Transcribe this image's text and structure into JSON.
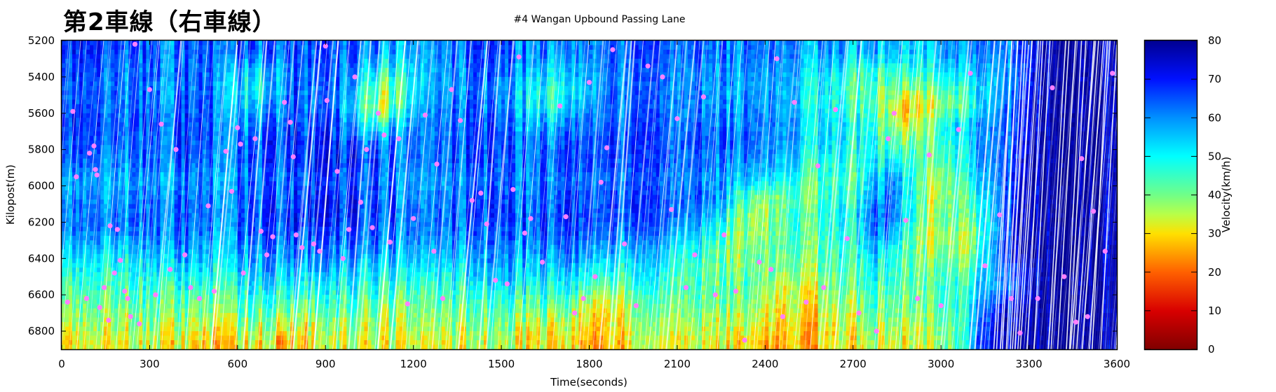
{
  "chart_data": {
    "type": "heatmap",
    "title": "第2車線（右車線）",
    "subtitle": "#4 Wangan Upbound Passing Lane",
    "xlabel": "Time(seconds)",
    "ylabel": "Kilopost(m)",
    "xlim": [
      0,
      3600
    ],
    "ylim": [
      5200,
      6900
    ],
    "y_inverted": true,
    "xticks": [
      0,
      300,
      600,
      900,
      1200,
      1500,
      1800,
      2100,
      2400,
      2700,
      3000,
      3300,
      3600
    ],
    "yticks": [
      5200,
      5400,
      5600,
      5800,
      6000,
      6200,
      6400,
      6600,
      6800
    ],
    "colorbar": {
      "label": "Velocity(km/h)",
      "range": [
        0,
        80
      ],
      "ticks": [
        0,
        10,
        20,
        30,
        40,
        50,
        60,
        70,
        80
      ],
      "colormap": "jet"
    },
    "grid_time_bins": [
      0,
      150,
      300,
      450,
      600,
      750,
      900,
      1050,
      1200,
      1350,
      1500,
      1650,
      1800,
      1950,
      2100,
      2250,
      2400,
      2550,
      2700,
      2850,
      3000,
      3150,
      3300,
      3450
    ],
    "grid_kilopost_bins": [
      5200,
      5300,
      5400,
      5500,
      5600,
      5700,
      5800,
      5900,
      6000,
      6100,
      6200,
      6300,
      6400,
      6500,
      6600,
      6700,
      6800
    ],
    "velocity_grid_kmh": [
      [
        66,
        64,
        62,
        66,
        62,
        66,
        64,
        58,
        62,
        66,
        62,
        58,
        64,
        66,
        64,
        62,
        58,
        58,
        56,
        56,
        58,
        62,
        74,
        76
      ],
      [
        64,
        62,
        62,
        64,
        52,
        64,
        62,
        48,
        60,
        64,
        60,
        52,
        62,
        64,
        62,
        60,
        56,
        52,
        46,
        50,
        52,
        58,
        74,
        76
      ],
      [
        62,
        62,
        60,
        64,
        48,
        64,
        60,
        38,
        60,
        62,
        56,
        46,
        60,
        64,
        62,
        58,
        54,
        50,
        42,
        40,
        44,
        56,
        74,
        76
      ],
      [
        64,
        62,
        62,
        66,
        52,
        64,
        62,
        34,
        62,
        64,
        58,
        48,
        62,
        64,
        62,
        60,
        56,
        50,
        44,
        30,
        38,
        58,
        74,
        76
      ],
      [
        66,
        64,
        64,
        66,
        58,
        66,
        66,
        46,
        64,
        66,
        62,
        56,
        64,
        66,
        64,
        62,
        58,
        52,
        50,
        34,
        48,
        60,
        74,
        76
      ],
      [
        64,
        62,
        62,
        66,
        62,
        68,
        68,
        62,
        64,
        66,
        64,
        62,
        66,
        66,
        66,
        64,
        58,
        52,
        50,
        42,
        44,
        60,
        74,
        76
      ],
      [
        62,
        60,
        62,
        64,
        62,
        66,
        70,
        66,
        64,
        66,
        64,
        64,
        66,
        66,
        66,
        62,
        56,
        48,
        48,
        52,
        40,
        58,
        74,
        76
      ],
      [
        56,
        56,
        58,
        60,
        60,
        62,
        66,
        64,
        60,
        62,
        62,
        62,
        62,
        64,
        64,
        60,
        50,
        44,
        44,
        60,
        34,
        54,
        74,
        76
      ],
      [
        58,
        58,
        60,
        62,
        62,
        64,
        68,
        66,
        62,
        64,
        64,
        64,
        64,
        66,
        66,
        62,
        36,
        42,
        46,
        64,
        34,
        46,
        74,
        76
      ],
      [
        60,
        60,
        62,
        64,
        62,
        66,
        70,
        66,
        64,
        66,
        64,
        66,
        66,
        66,
        66,
        58,
        32,
        44,
        48,
        66,
        38,
        42,
        74,
        76
      ],
      [
        58,
        58,
        60,
        62,
        60,
        64,
        66,
        64,
        62,
        64,
        62,
        64,
        64,
        62,
        62,
        52,
        34,
        42,
        46,
        62,
        36,
        36,
        74,
        76
      ],
      [
        52,
        52,
        54,
        58,
        56,
        60,
        62,
        60,
        58,
        60,
        58,
        60,
        60,
        56,
        56,
        46,
        38,
        40,
        44,
        54,
        40,
        36,
        74,
        76
      ],
      [
        46,
        46,
        48,
        52,
        52,
        56,
        56,
        54,
        52,
        54,
        54,
        56,
        54,
        48,
        52,
        44,
        40,
        36,
        42,
        48,
        44,
        40,
        66,
        76
      ],
      [
        42,
        42,
        44,
        46,
        46,
        50,
        50,
        48,
        46,
        48,
        48,
        50,
        48,
        40,
        48,
        44,
        42,
        30,
        38,
        46,
        44,
        44,
        62,
        76
      ],
      [
        38,
        38,
        40,
        42,
        40,
        44,
        42,
        44,
        40,
        44,
        42,
        44,
        40,
        30,
        42,
        42,
        40,
        28,
        34,
        42,
        42,
        44,
        70,
        76
      ],
      [
        34,
        34,
        36,
        38,
        34,
        38,
        34,
        38,
        36,
        40,
        38,
        38,
        34,
        28,
        38,
        38,
        36,
        26,
        30,
        38,
        38,
        40,
        74,
        76
      ],
      [
        30,
        28,
        32,
        34,
        28,
        32,
        26,
        34,
        34,
        36,
        34,
        34,
        30,
        24,
        34,
        34,
        32,
        22,
        28,
        34,
        34,
        38,
        74,
        76
      ]
    ],
    "vehicle_trajectories": "white diagonal lines (vehicles travelling toward decreasing kilopost over time)",
    "marker_series": {
      "name": "events",
      "color": "#ff80ff",
      "points": [
        [
          20,
          6640
        ],
        [
          38,
          5590
        ],
        [
          50,
          5950
        ],
        [
          85,
          6620
        ],
        [
          95,
          5820
        ],
        [
          110,
          5780
        ],
        [
          115,
          5910
        ],
        [
          120,
          5940
        ],
        [
          130,
          6670
        ],
        [
          145,
          6560
        ],
        [
          160,
          6740
        ],
        [
          165,
          6220
        ],
        [
          180,
          6480
        ],
        [
          190,
          6240
        ],
        [
          200,
          6410
        ],
        [
          215,
          6580
        ],
        [
          225,
          6620
        ],
        [
          235,
          6720
        ],
        [
          250,
          5220
        ],
        [
          265,
          6760
        ],
        [
          300,
          5470
        ],
        [
          320,
          6600
        ],
        [
          340,
          5660
        ],
        [
          370,
          6460
        ],
        [
          390,
          5800
        ],
        [
          420,
          6380
        ],
        [
          440,
          6560
        ],
        [
          470,
          6620
        ],
        [
          500,
          6110
        ],
        [
          520,
          6580
        ],
        [
          560,
          5810
        ],
        [
          580,
          6030
        ],
        [
          600,
          5680
        ],
        [
          610,
          5770
        ],
        [
          620,
          6480
        ],
        [
          660,
          5740
        ],
        [
          680,
          6250
        ],
        [
          700,
          6380
        ],
        [
          720,
          6280
        ],
        [
          760,
          5540
        ],
        [
          780,
          5650
        ],
        [
          790,
          5840
        ],
        [
          800,
          6270
        ],
        [
          820,
          6340
        ],
        [
          860,
          6320
        ],
        [
          880,
          6360
        ],
        [
          900,
          5230
        ],
        [
          905,
          5530
        ],
        [
          940,
          5920
        ],
        [
          960,
          6400
        ],
        [
          980,
          6240
        ],
        [
          1000,
          5400
        ],
        [
          1020,
          6090
        ],
        [
          1040,
          5800
        ],
        [
          1060,
          6230
        ],
        [
          1080,
          5600
        ],
        [
          1100,
          5720
        ],
        [
          1120,
          6310
        ],
        [
          1150,
          5740
        ],
        [
          1180,
          6650
        ],
        [
          1200,
          6180
        ],
        [
          1240,
          5610
        ],
        [
          1270,
          6360
        ],
        [
          1280,
          5880
        ],
        [
          1300,
          6620
        ],
        [
          1330,
          5470
        ],
        [
          1360,
          5640
        ],
        [
          1400,
          6080
        ],
        [
          1430,
          6040
        ],
        [
          1450,
          6210
        ],
        [
          1480,
          6520
        ],
        [
          1520,
          6540
        ],
        [
          1540,
          6020
        ],
        [
          1560,
          5290
        ],
        [
          1580,
          6260
        ],
        [
          1600,
          6180
        ],
        [
          1640,
          6420
        ],
        [
          1700,
          5560
        ],
        [
          1720,
          6170
        ],
        [
          1750,
          6700
        ],
        [
          1780,
          6620
        ],
        [
          1800,
          5430
        ],
        [
          1820,
          6500
        ],
        [
          1840,
          5980
        ],
        [
          1860,
          5790
        ],
        [
          1880,
          5250
        ],
        [
          1920,
          6320
        ],
        [
          1960,
          6660
        ],
        [
          2000,
          5340
        ],
        [
          2050,
          5400
        ],
        [
          2080,
          6130
        ],
        [
          2100,
          5630
        ],
        [
          2130,
          6560
        ],
        [
          2160,
          6380
        ],
        [
          2190,
          5510
        ],
        [
          2230,
          6600
        ],
        [
          2260,
          6270
        ],
        [
          2300,
          6580
        ],
        [
          2330,
          6850
        ],
        [
          2380,
          6420
        ],
        [
          2420,
          6460
        ],
        [
          2440,
          5300
        ],
        [
          2460,
          6720
        ],
        [
          2500,
          5540
        ],
        [
          2540,
          6640
        ],
        [
          2580,
          5890
        ],
        [
          2600,
          6560
        ],
        [
          2640,
          5580
        ],
        [
          2680,
          6290
        ],
        [
          2720,
          6700
        ],
        [
          2780,
          6800
        ],
        [
          2820,
          5740
        ],
        [
          2840,
          5600
        ],
        [
          2880,
          6190
        ],
        [
          2920,
          6620
        ],
        [
          2960,
          5830
        ],
        [
          3000,
          6660
        ],
        [
          3060,
          5690
        ],
        [
          3100,
          5380
        ],
        [
          3150,
          6440
        ],
        [
          3200,
          6160
        ],
        [
          3240,
          6620
        ],
        [
          3270,
          6810
        ],
        [
          3330,
          6620
        ],
        [
          3380,
          5460
        ],
        [
          3420,
          6500
        ],
        [
          3460,
          6750
        ],
        [
          3480,
          5850
        ],
        [
          3500,
          6720
        ],
        [
          3520,
          6140
        ],
        [
          3560,
          6360
        ],
        [
          3585,
          5380
        ]
      ]
    }
  }
}
